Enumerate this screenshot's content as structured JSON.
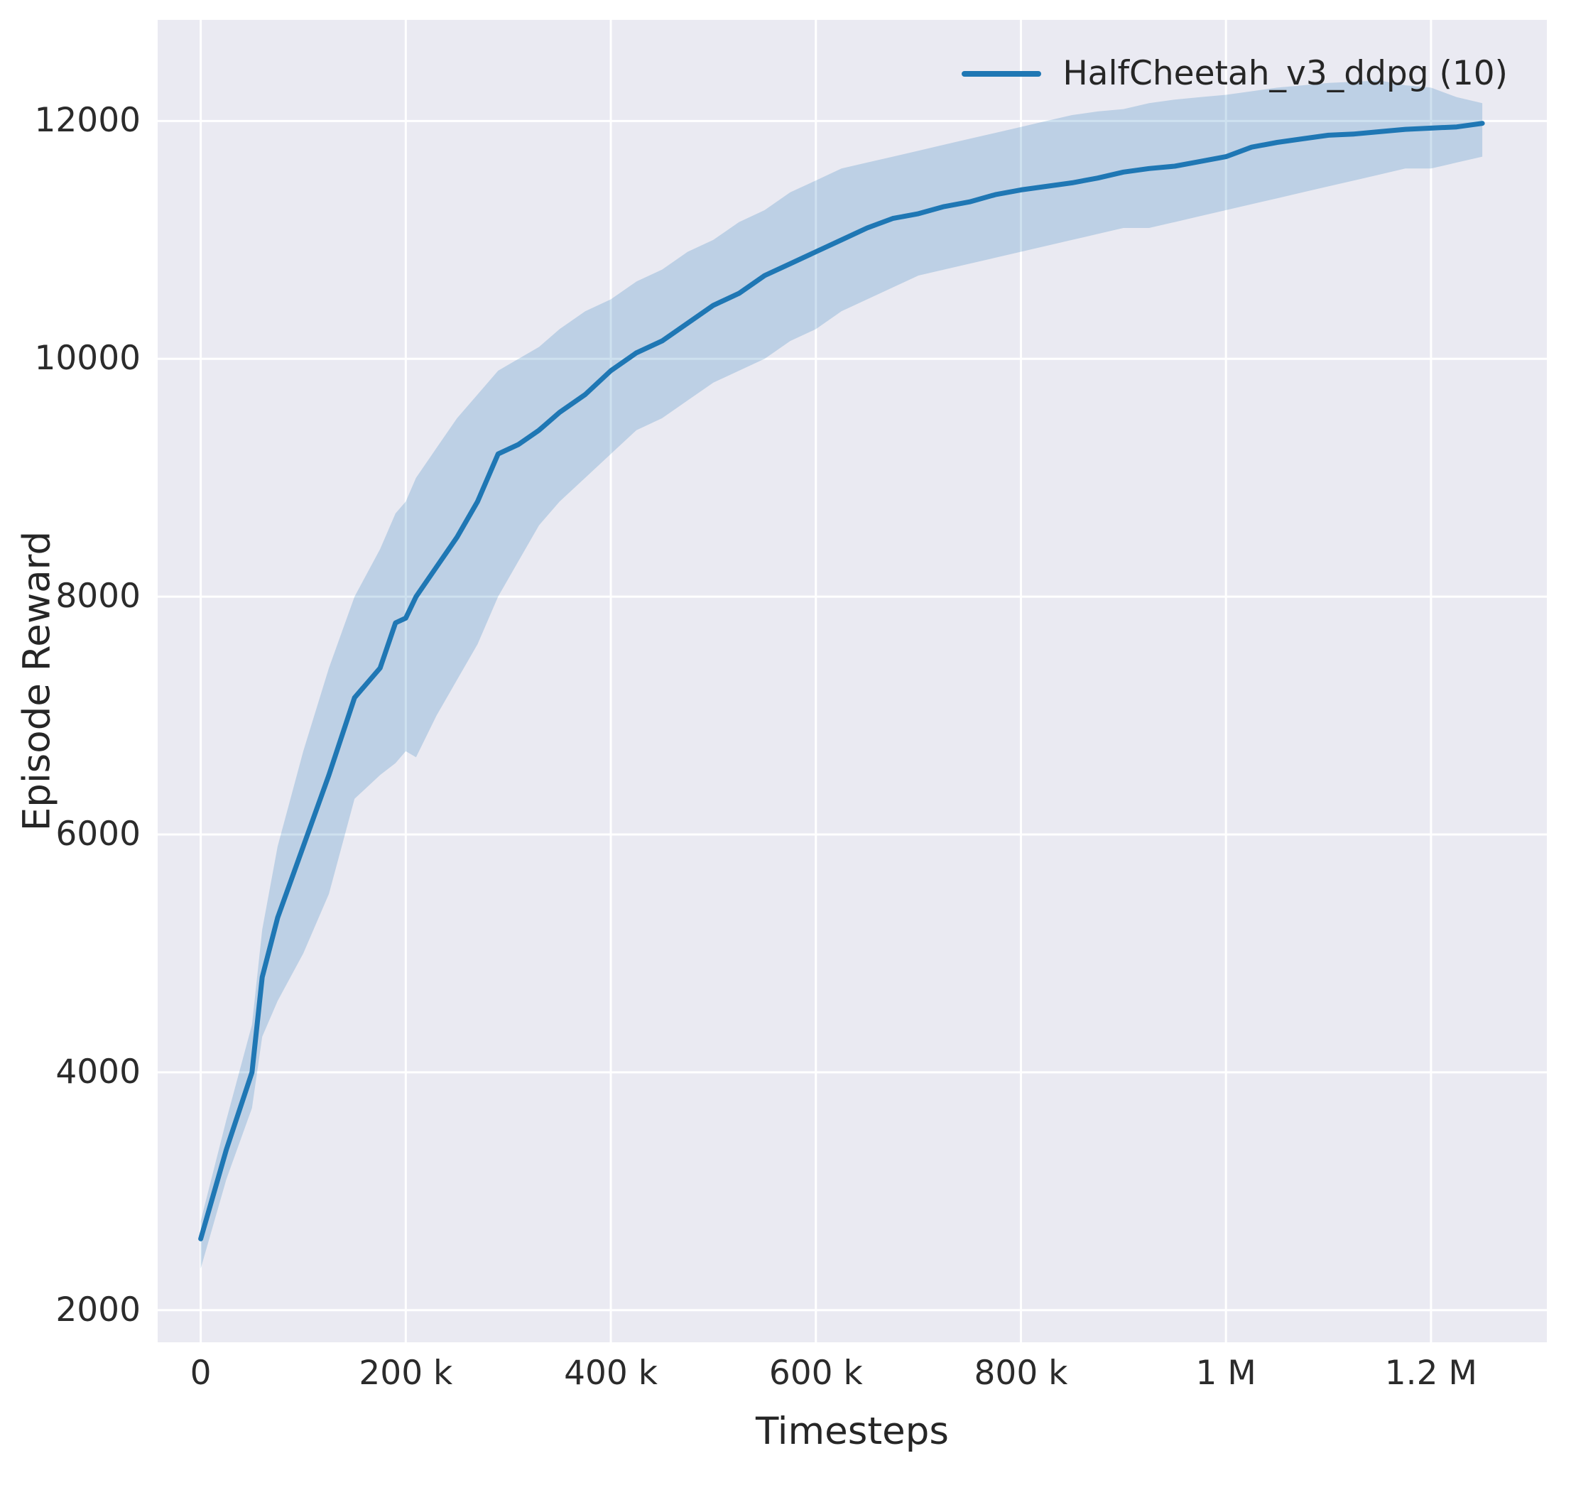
{
  "chart_data": {
    "type": "line",
    "title": "",
    "xlabel": "Timesteps",
    "ylabel": "Episode Reward",
    "legend": [
      {
        "label": "HalfCheetah_v3_ddpg (10)",
        "color": "#1f77b4",
        "position": "upper right"
      }
    ],
    "xlim": [
      -42000,
      1313000
    ],
    "ylim": [
      1730,
      12850
    ],
    "grid": true,
    "x_ticks": [
      {
        "value": 0,
        "label": "0"
      },
      {
        "value": 200000,
        "label": "200 k"
      },
      {
        "value": 400000,
        "label": "400 k"
      },
      {
        "value": 600000,
        "label": "600 k"
      },
      {
        "value": 800000,
        "label": "800 k"
      },
      {
        "value": 1000000,
        "label": "1 M"
      },
      {
        "value": 1200000,
        "label": "1.2 M"
      }
    ],
    "y_ticks": [
      {
        "value": 2000,
        "label": "2000"
      },
      {
        "value": 4000,
        "label": "4000"
      },
      {
        "value": 6000,
        "label": "6000"
      },
      {
        "value": 8000,
        "label": "8000"
      },
      {
        "value": 10000,
        "label": "10000"
      },
      {
        "value": 12000,
        "label": "12000"
      }
    ],
    "series": [
      {
        "name": "HalfCheetah_v3_ddpg (10)",
        "color": "#1f77b4",
        "x": [
          0,
          25000,
          50000,
          60000,
          75000,
          100000,
          125000,
          150000,
          175000,
          190000,
          200000,
          210000,
          230000,
          250000,
          270000,
          290000,
          310000,
          330000,
          350000,
          375000,
          400000,
          425000,
          450000,
          475000,
          500000,
          525000,
          550000,
          575000,
          600000,
          625000,
          650000,
          675000,
          700000,
          725000,
          750000,
          775000,
          800000,
          825000,
          850000,
          875000,
          900000,
          925000,
          950000,
          975000,
          1000000,
          1025000,
          1050000,
          1075000,
          1100000,
          1125000,
          1150000,
          1175000,
          1200000,
          1225000,
          1250000
        ],
        "mean": [
          2600,
          3350,
          4000,
          4800,
          5300,
          5900,
          6500,
          7150,
          7400,
          7780,
          7820,
          8000,
          8250,
          8500,
          8800,
          9200,
          9280,
          9400,
          9550,
          9700,
          9900,
          10050,
          10150,
          10300,
          10450,
          10550,
          10700,
          10800,
          10900,
          11000,
          11100,
          11180,
          11220,
          11280,
          11320,
          11380,
          11420,
          11450,
          11480,
          11520,
          11570,
          11600,
          11620,
          11660,
          11700,
          11780,
          11820,
          11850,
          11880,
          11890,
          11910,
          11930,
          11940,
          11950,
          11980
        ],
        "lower": [
          2350,
          3100,
          3700,
          4300,
          4600,
          5000,
          5500,
          6300,
          6500,
          6600,
          6700,
          6650,
          7000,
          7300,
          7600,
          8000,
          8300,
          8600,
          8800,
          9000,
          9200,
          9400,
          9500,
          9650,
          9800,
          9900,
          10000,
          10150,
          10250,
          10400,
          10500,
          10600,
          10700,
          10750,
          10800,
          10850,
          10900,
          10950,
          11000,
          11050,
          11100,
          11100,
          11150,
          11200,
          11250,
          11300,
          11350,
          11400,
          11450,
          11500,
          11550,
          11600,
          11600,
          11650,
          11700
        ],
        "upper": [
          2750,
          3600,
          4400,
          5200,
          5900,
          6700,
          7400,
          8000,
          8400,
          8700,
          8800,
          9000,
          9250,
          9500,
          9700,
          9900,
          10000,
          10100,
          10250,
          10400,
          10500,
          10650,
          10750,
          10900,
          11000,
          11150,
          11250,
          11400,
          11500,
          11600,
          11650,
          11700,
          11750,
          11800,
          11850,
          11900,
          11950,
          12000,
          12050,
          12080,
          12100,
          12150,
          12180,
          12200,
          12220,
          12250,
          12280,
          12300,
          12320,
          12330,
          12340,
          12300,
          12280,
          12200,
          12150
        ]
      }
    ],
    "style": {
      "figure_bg": "#ffffff",
      "plot_bg": "#eaeaf2",
      "grid_color": "#ffffff",
      "line_color": "#1f77b4",
      "band_fill": "#1f77b4",
      "band_opacity": 0.22,
      "tick_color": "#2b2b2b",
      "label_color": "#262626"
    }
  }
}
